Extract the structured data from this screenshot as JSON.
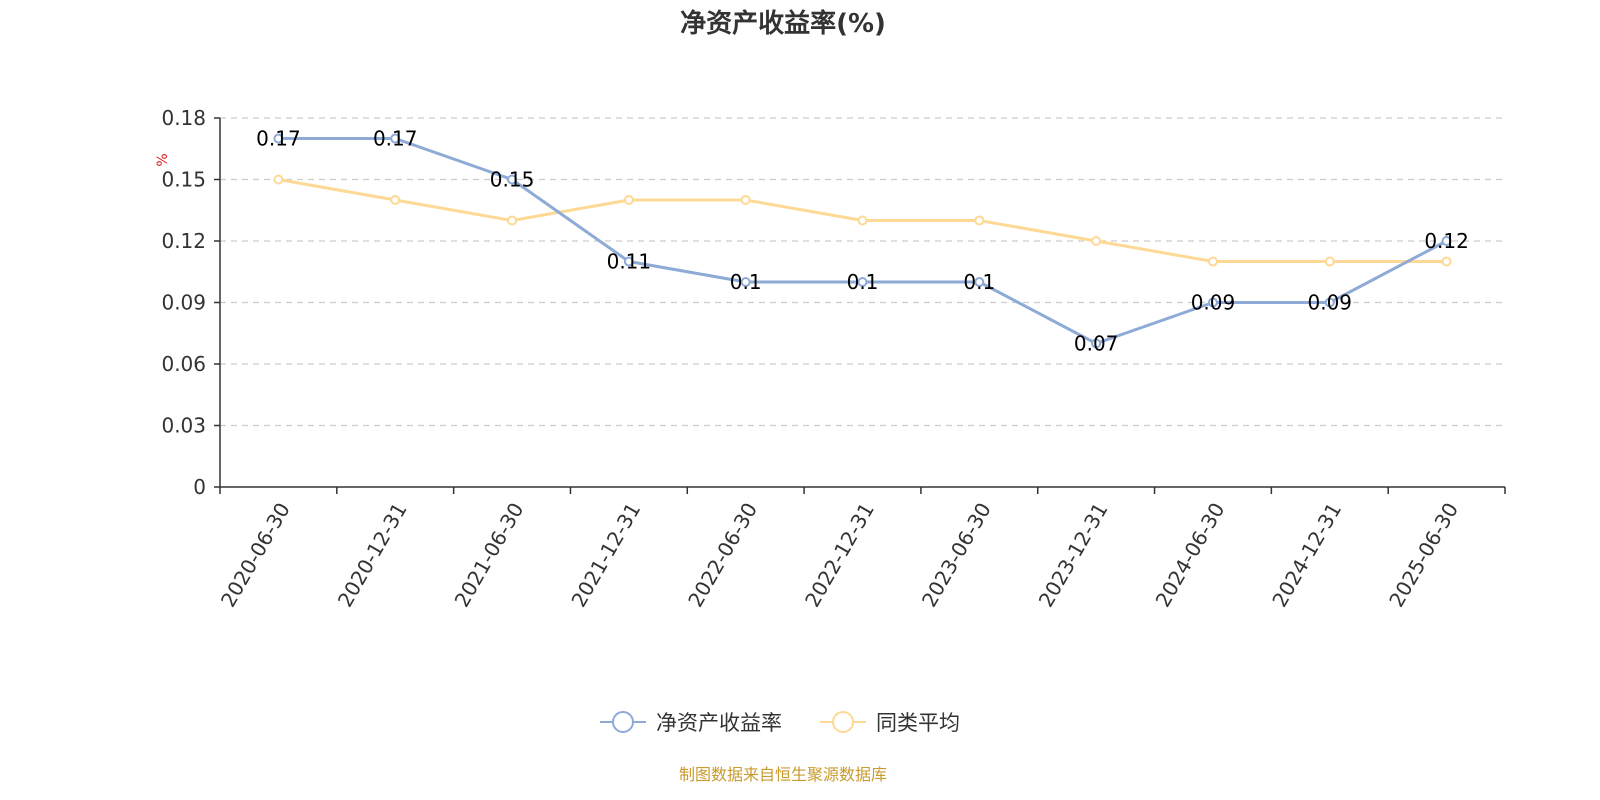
{
  "title": "净资产收益率(%)",
  "source": "制图数据来自恒生聚源数据库",
  "chart_data": {
    "type": "line",
    "title": "净资产收益率(%)",
    "ylabel": "%",
    "xlabel": "",
    "categories": [
      "2020-06-30",
      "2020-12-31",
      "2021-06-30",
      "2021-12-31",
      "2022-06-30",
      "2022-12-31",
      "2023-06-30",
      "2023-12-31",
      "2024-06-30",
      "2024-12-31",
      "2025-06-30"
    ],
    "ylim": [
      0,
      0.18
    ],
    "yticks": [
      "0",
      "0.03",
      "0.06",
      "0.09",
      "0.12",
      "0.15",
      "0.18"
    ],
    "grid": true,
    "legend_position": "bottom",
    "series": [
      {
        "name": "净资产收益率",
        "color": "#8eaad6",
        "values": [
          0.17,
          0.17,
          0.15,
          0.11,
          0.1,
          0.1,
          0.1,
          0.07,
          0.09,
          0.09,
          0.12
        ],
        "labels": [
          "0.17",
          "0.17",
          "0.15",
          "0.11",
          "0.1",
          "0.1",
          "0.1",
          "0.07",
          "0.09",
          "0.09",
          "0.12"
        ]
      },
      {
        "name": "同类平均",
        "color": "#fdd995",
        "values": [
          0.15,
          0.14,
          0.13,
          0.14,
          0.14,
          0.13,
          0.13,
          0.12,
          0.11,
          0.11,
          0.11
        ]
      }
    ]
  }
}
